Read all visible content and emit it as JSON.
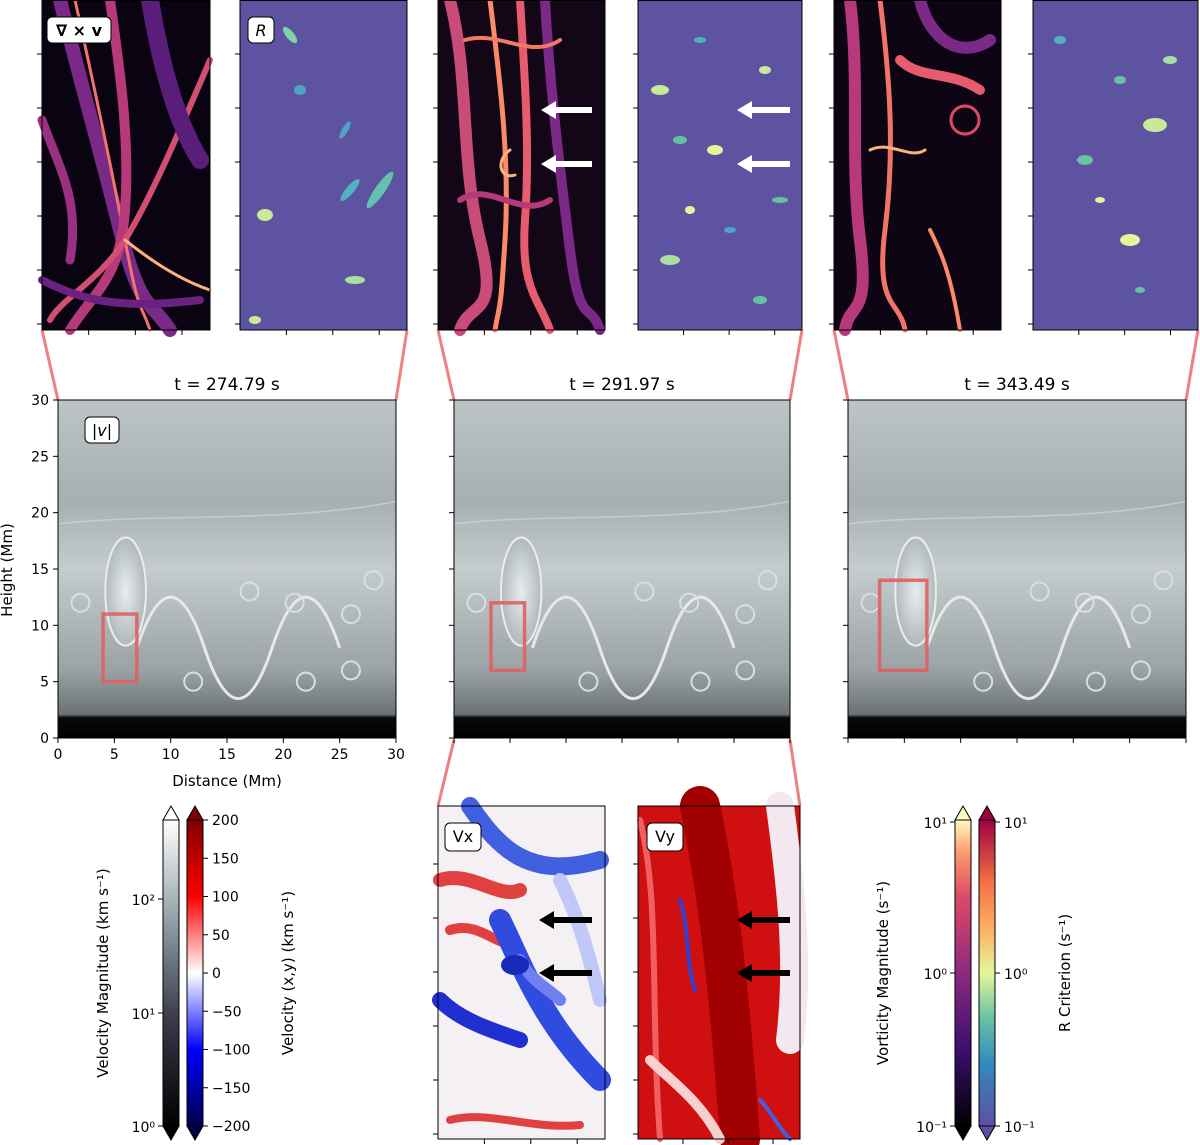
{
  "figure": {
    "time_titles": [
      "t = 274.79 s",
      "t = 291.97 s",
      "t = 343.49 s"
    ],
    "panel_labels": {
      "vorticity": "∇ × v",
      "r_criterion": "R",
      "velocity_magnitude": "|v|",
      "vx": "Vx",
      "vy": "Vy"
    },
    "colorbars": {
      "velocity_magnitude": {
        "label": "Velocity Magnitude (km s⁻¹)",
        "scale": "log",
        "ticks": [
          "10⁰",
          "10¹",
          "10²"
        ],
        "colormap": "bone"
      },
      "velocity_xy": {
        "label": "Velocity (x,y) (km s⁻¹)",
        "scale": "linear",
        "range": [
          -200,
          200
        ],
        "ticks": [
          "200",
          "150",
          "100",
          "50",
          "0",
          "−50",
          "−100",
          "−150",
          "−200"
        ],
        "colormap": "seismic"
      },
      "vorticity": {
        "label": "Vorticity Magnitude (s⁻¹)",
        "scale": "log",
        "ticks": [
          "10¹",
          "10⁰",
          "10⁻¹"
        ],
        "colormap": "magma"
      },
      "r_criterion": {
        "label": "R Criterion (s⁻¹)",
        "scale": "log",
        "ticks": [
          "10¹",
          "10⁰",
          "10⁻¹"
        ],
        "colormap": "spectral"
      }
    },
    "colors": {
      "highlight_box": "#e06060",
      "connector": "#f08080",
      "arrow_white": "#ffffff",
      "arrow_black": "#000000"
    }
  },
  "chart_data": [
    {
      "type": "heatmap",
      "title": "t = 274.79 s",
      "quantity": "|v|",
      "xlabel": "Distance (Mm)",
      "ylabel": "Height (Mm)",
      "xlim": [
        0,
        30
      ],
      "ylim": [
        0,
        30
      ],
      "x_ticks": [
        0,
        5,
        10,
        15,
        20,
        25,
        30
      ],
      "y_ticks": [
        0,
        5,
        10,
        15,
        20,
        25,
        30
      ],
      "highlight_region": {
        "x": [
          4,
          7
        ],
        "y": [
          5,
          11
        ]
      }
    },
    {
      "type": "heatmap",
      "title": "t = 291.97 s",
      "quantity": "|v|",
      "xlim": [
        0,
        30
      ],
      "ylim": [
        0,
        30
      ],
      "highlight_region": {
        "x": [
          3.3,
          6.3
        ],
        "y": [
          6,
          12
        ]
      }
    },
    {
      "type": "heatmap",
      "title": "t = 343.49 s",
      "quantity": "|v|",
      "xlim": [
        0,
        30
      ],
      "ylim": [
        0,
        30
      ],
      "highlight_region": {
        "x": [
          2.8,
          7
        ],
        "y": [
          6,
          14
        ]
      }
    }
  ]
}
